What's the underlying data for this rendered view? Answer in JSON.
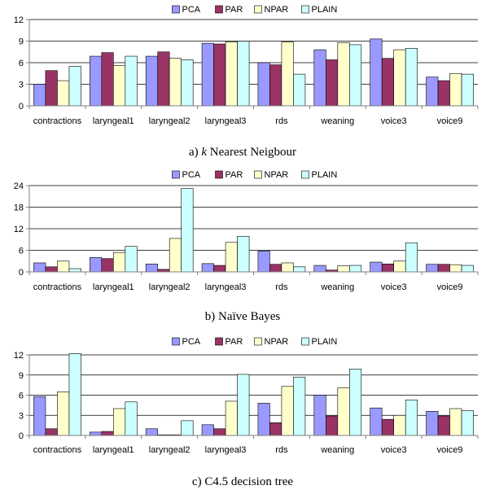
{
  "colors": {
    "PCA": "#9999ff",
    "PAR": "#993366",
    "NPAR": "#ffffcc",
    "PLAIN": "#ccffff",
    "axis": "#808080",
    "grid": "#000000",
    "bar_border": "#000000"
  },
  "chart_data": [
    {
      "type": "bar",
      "title": "",
      "caption_prefix": "a) ",
      "caption_italic": "k",
      "caption_rest": " Nearest Neigbour",
      "xlabel": "",
      "ylabel": "",
      "ylim": [
        0,
        12
      ],
      "yticks": [
        0,
        3,
        6,
        9,
        12
      ],
      "grid": true,
      "legend": "top",
      "categories": [
        "contractions",
        "laryngeal1",
        "laryngeal2",
        "laryngeal3",
        "rds",
        "weaning",
        "voice3",
        "voice9"
      ],
      "series": [
        {
          "name": "PCA",
          "values": [
            3.0,
            6.9,
            6.9,
            8.7,
            6.0,
            7.8,
            9.3,
            4.0
          ]
        },
        {
          "name": "PAR",
          "values": [
            4.9,
            7.4,
            7.5,
            8.6,
            5.7,
            6.4,
            6.6,
            3.5
          ]
        },
        {
          "name": "NPAR",
          "values": [
            3.5,
            5.6,
            6.6,
            8.9,
            8.9,
            8.8,
            7.8,
            4.5
          ]
        },
        {
          "name": "PLAIN",
          "values": [
            5.5,
            6.9,
            6.4,
            9.0,
            4.4,
            8.5,
            8.0,
            4.4
          ]
        }
      ]
    },
    {
      "type": "bar",
      "title": "",
      "caption_prefix": "b) ",
      "caption_italic": "",
      "caption_rest": "Naïve Bayes",
      "xlabel": "",
      "ylabel": "",
      "ylim": [
        0,
        24
      ],
      "yticks": [
        0,
        6,
        12,
        18,
        24
      ],
      "grid": true,
      "legend": "top",
      "categories": [
        "contractions",
        "laryngeal1",
        "laryngeal2",
        "laryngeal3",
        "rds",
        "weaning",
        "voice3",
        "voice9"
      ],
      "series": [
        {
          "name": "PCA",
          "values": [
            2.5,
            4.0,
            2.2,
            2.3,
            5.8,
            1.8,
            2.7,
            2.1
          ]
        },
        {
          "name": "PAR",
          "values": [
            1.4,
            3.7,
            0.7,
            1.8,
            2.1,
            0.5,
            2.2,
            2.1
          ]
        },
        {
          "name": "NPAR",
          "values": [
            3.0,
            5.4,
            9.3,
            8.2,
            2.5,
            1.7,
            3.0,
            2.0
          ]
        },
        {
          "name": "PLAIN",
          "values": [
            0.9,
            7.1,
            23.2,
            9.9,
            1.4,
            1.8,
            8.1,
            1.8
          ]
        }
      ]
    },
    {
      "type": "bar",
      "title": "",
      "caption_prefix": "c) ",
      "caption_italic": "",
      "caption_rest": "C4.5 decision tree",
      "xlabel": "",
      "ylabel": "",
      "ylim": [
        0,
        12
      ],
      "yticks": [
        0,
        3,
        6,
        9,
        12
      ],
      "grid": true,
      "legend": "top",
      "categories": [
        "contractions",
        "laryngeal1",
        "laryngeal2",
        "laryngeal3",
        "rds",
        "weaning",
        "voice3",
        "voice9"
      ],
      "series": [
        {
          "name": "PCA",
          "values": [
            5.8,
            0.5,
            1.0,
            1.6,
            4.8,
            6.0,
            4.1,
            3.6
          ]
        },
        {
          "name": "PAR",
          "values": [
            1.0,
            0.6,
            0.1,
            1.0,
            1.9,
            2.9,
            2.4,
            2.9
          ]
        },
        {
          "name": "NPAR",
          "values": [
            6.5,
            4.0,
            0.1,
            5.1,
            7.3,
            7.1,
            3.0,
            4.0
          ]
        },
        {
          "name": "PLAIN",
          "values": [
            12.2,
            5.0,
            2.2,
            9.1,
            8.7,
            9.9,
            5.3,
            3.7
          ]
        }
      ]
    }
  ]
}
